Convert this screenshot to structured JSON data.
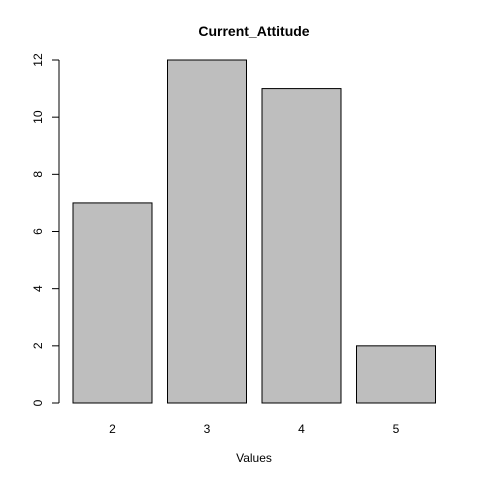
{
  "chart_data": {
    "type": "bar",
    "title": "Current_Attitude",
    "xlabel": "Values",
    "ylabel": "",
    "categories": [
      "2",
      "3",
      "4",
      "5"
    ],
    "values": [
      7,
      12,
      11,
      2
    ],
    "ylim": [
      0,
      12
    ],
    "yticks": [
      "0",
      "2",
      "4",
      "6",
      "8",
      "10",
      "12"
    ],
    "bar_color": "#bebebe",
    "border_color": "#000000",
    "grid": false,
    "legend": "none"
  }
}
